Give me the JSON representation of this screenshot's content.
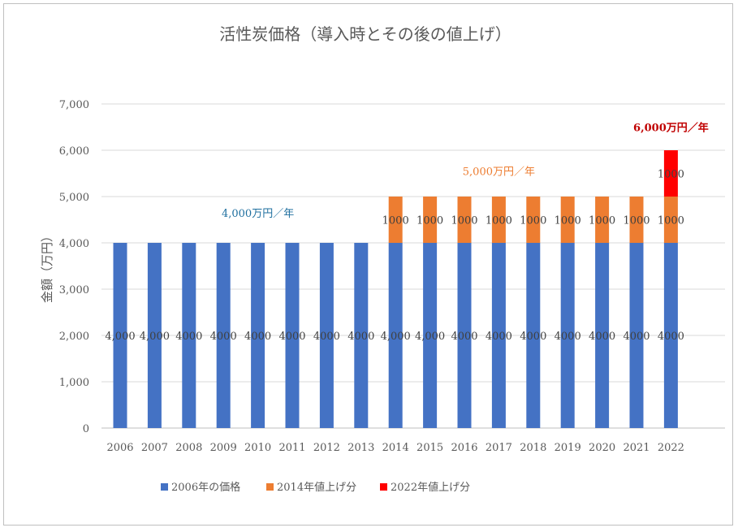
{
  "chart_data": {
    "type": "bar",
    "stacked": true,
    "title": "活性炭価格（導入時とその後の値上げ）",
    "ylabel": "金額（万円）",
    "xlabel": "",
    "ylim": [
      0,
      7000
    ],
    "yticks": [
      "0",
      "1,000",
      "2,000",
      "3,000",
      "4,000",
      "5,000",
      "6,000",
      "7,000"
    ],
    "grid": true,
    "legend_position": "bottom",
    "categories": [
      "2006",
      "2007",
      "2008",
      "2009",
      "2010",
      "2011",
      "2012",
      "2013",
      "2014",
      "2015",
      "2016",
      "2017",
      "2018",
      "2019",
      "2020",
      "2021",
      "2022"
    ],
    "series": [
      {
        "name": "2006年の価格",
        "color": "#4472c4",
        "values": [
          4000,
          4000,
          4000,
          4000,
          4000,
          4000,
          4000,
          4000,
          4000,
          4000,
          4000,
          4000,
          4000,
          4000,
          4000,
          4000,
          4000
        ],
        "labels": [
          "4,000",
          "4,000",
          "4000",
          "4000",
          "4000",
          "4000",
          "4000",
          "4000",
          "4,000",
          "4,000",
          "4000",
          "4000",
          "4000",
          "4000",
          "4000",
          "4000",
          "4000"
        ]
      },
      {
        "name": "2014年値上げ分",
        "color": "#ed7d31",
        "values": [
          0,
          0,
          0,
          0,
          0,
          0,
          0,
          0,
          1000,
          1000,
          1000,
          1000,
          1000,
          1000,
          1000,
          1000,
          1000
        ],
        "labels": [
          "",
          "",
          "",
          "",
          "",
          "",
          "",
          "",
          "1000",
          "1000",
          "1000",
          "1000",
          "1000",
          "1000",
          "1000",
          "1000",
          "1000"
        ]
      },
      {
        "name": "2022年値上げ分",
        "color": "#ff0000",
        "values": [
          0,
          0,
          0,
          0,
          0,
          0,
          0,
          0,
          0,
          0,
          0,
          0,
          0,
          0,
          0,
          0,
          1000
        ],
        "labels": [
          "",
          "",
          "",
          "",
          "",
          "",
          "",
          "",
          "",
          "",
          "",
          "",
          "",
          "",
          "",
          "",
          "1000"
        ]
      }
    ],
    "annotations": [
      {
        "text": "4,000万円／年",
        "color": "#1f6f9f",
        "x": "2010",
        "y": 4650,
        "bold": false
      },
      {
        "text": "5,000万円／年",
        "color": "#ed7d31",
        "x": "2017",
        "y": 5550,
        "bold": false
      },
      {
        "text": "6,000万円／年",
        "color": "#c00000",
        "x": "2022",
        "y": 6500,
        "bold": true
      }
    ]
  }
}
